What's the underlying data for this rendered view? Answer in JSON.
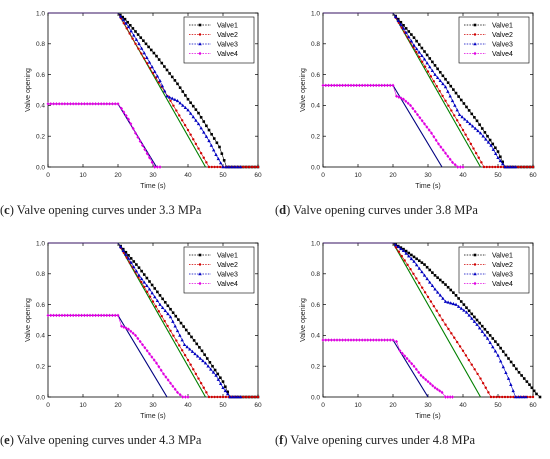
{
  "chart_data": [
    {
      "type": "line",
      "panel_label": "c",
      "caption": "Valve opening curves under 3.3 MPa",
      "xlabel": "Time (s)",
      "ylabel": "Valve opening",
      "xlim": [
        0,
        60
      ],
      "ylim": [
        0,
        1.0
      ],
      "xticks": [
        "0",
        "10",
        "20",
        "30",
        "40",
        "50",
        "60"
      ],
      "yticks": [
        "0.0",
        "0.2",
        "0.4",
        "0.6",
        "0.8",
        "1.0"
      ],
      "legend": "top-right",
      "series": [
        {
          "name": "",
          "color": "#000080",
          "marker": "none",
          "x": [
            0,
            20,
            31
          ],
          "y": [
            0.41,
            0.41,
            0
          ]
        },
        {
          "name": "",
          "color": "#008000",
          "marker": "none",
          "x": [
            0,
            20,
            45
          ],
          "y": [
            1,
            1,
            0
          ]
        },
        {
          "name": "Valve1",
          "color": "#000000",
          "marker": "square",
          "x": [
            0,
            20,
            22,
            25,
            28,
            31,
            34,
            37,
            40,
            43,
            46,
            49,
            51,
            55,
            60
          ],
          "y": [
            1,
            1,
            0.96,
            0.88,
            0.8,
            0.72,
            0.63,
            0.54,
            0.44,
            0.35,
            0.24,
            0.13,
            0,
            0,
            0
          ]
        },
        {
          "name": "Valve2",
          "color": "#d00000",
          "marker": "dot",
          "x": [
            0,
            20,
            25,
            30,
            35,
            40,
            46,
            50,
            55,
            60
          ],
          "y": [
            1,
            1,
            0.8,
            0.61,
            0.43,
            0.24,
            0,
            0,
            0,
            0
          ]
        },
        {
          "name": "Valve3",
          "color": "#0000c0",
          "marker": "triangle",
          "x": [
            0,
            20,
            23,
            26,
            29,
            32,
            34,
            37,
            40,
            43,
            46,
            48,
            50,
            55
          ],
          "y": [
            1,
            1,
            0.91,
            0.8,
            0.68,
            0.56,
            0.46,
            0.43,
            0.37,
            0.28,
            0.17,
            0.08,
            0,
            0
          ]
        },
        {
          "name": "Valve4",
          "color": "#e000e0",
          "marker": "diamond",
          "x": [
            0,
            20,
            21,
            23,
            25,
            27,
            29,
            30.5,
            32
          ],
          "y": [
            0.41,
            0.41,
            0.38,
            0.31,
            0.22,
            0.14,
            0.06,
            0,
            0
          ]
        }
      ]
    },
    {
      "type": "line",
      "panel_label": "d",
      "caption": "Valve opening curves under 3.8 MPa",
      "xlabel": "Time (s)",
      "ylabel": "Valve opening",
      "xlim": [
        0,
        60
      ],
      "ylim": [
        0,
        1.0
      ],
      "xticks": [
        "0",
        "10",
        "20",
        "30",
        "40",
        "50",
        "60"
      ],
      "yticks": [
        "0.0",
        "0.2",
        "0.4",
        "0.6",
        "0.8",
        "1.0"
      ],
      "legend": "top-right",
      "series": [
        {
          "name": "",
          "color": "#000080",
          "marker": "none",
          "x": [
            0,
            20,
            34
          ],
          "y": [
            0.53,
            0.53,
            0
          ]
        },
        {
          "name": "",
          "color": "#008000",
          "marker": "none",
          "x": [
            0,
            20,
            45
          ],
          "y": [
            1,
            1,
            0
          ]
        },
        {
          "name": "Valve1",
          "color": "#000000",
          "marker": "square",
          "x": [
            0,
            20,
            23,
            26,
            29,
            32,
            35,
            38,
            41,
            44,
            47,
            50,
            52,
            55,
            60
          ],
          "y": [
            1,
            1,
            0.92,
            0.84,
            0.75,
            0.66,
            0.57,
            0.48,
            0.39,
            0.3,
            0.2,
            0.1,
            0,
            0,
            0
          ]
        },
        {
          "name": "Valve2",
          "color": "#d00000",
          "marker": "dot",
          "x": [
            0,
            20,
            25,
            30,
            35,
            40,
            46,
            50,
            55,
            60
          ],
          "y": [
            1,
            1,
            0.81,
            0.62,
            0.43,
            0.24,
            0,
            0,
            0,
            0
          ]
        },
        {
          "name": "Valve3",
          "color": "#0000c0",
          "marker": "triangle",
          "x": [
            0,
            20,
            23,
            26,
            29,
            32,
            35,
            37,
            39,
            42,
            45,
            48,
            50,
            52,
            55
          ],
          "y": [
            1,
            1,
            0.9,
            0.79,
            0.7,
            0.6,
            0.52,
            0.43,
            0.34,
            0.28,
            0.22,
            0.14,
            0.06,
            0,
            0
          ]
        },
        {
          "name": "Valve4",
          "color": "#e000e0",
          "marker": "diamond",
          "x": [
            0,
            20,
            21,
            23,
            25,
            27,
            29,
            31,
            33,
            35,
            37,
            38.5,
            40
          ],
          "y": [
            0.53,
            0.53,
            0.46,
            0.44,
            0.4,
            0.34,
            0.28,
            0.22,
            0.15,
            0.09,
            0.03,
            0,
            0
          ]
        }
      ]
    },
    {
      "type": "line",
      "panel_label": "e",
      "caption": "Valve opening curves under 4.3 MPa",
      "xlabel": "Time (s)",
      "ylabel": "Valve opening",
      "xlim": [
        0,
        60
      ],
      "ylim": [
        0,
        1.0
      ],
      "xticks": [
        "0",
        "10",
        "20",
        "30",
        "40",
        "50",
        "60"
      ],
      "yticks": [
        "0.0",
        "0.2",
        "0.4",
        "0.6",
        "0.8",
        "1.0"
      ],
      "legend": "top-right",
      "series": [
        {
          "name": "",
          "color": "#000080",
          "marker": "none",
          "x": [
            0,
            20,
            34
          ],
          "y": [
            0.53,
            0.53,
            0
          ]
        },
        {
          "name": "",
          "color": "#008000",
          "marker": "none",
          "x": [
            0,
            20,
            45
          ],
          "y": [
            1,
            1,
            0
          ]
        },
        {
          "name": "Valve1",
          "color": "#000000",
          "marker": "square",
          "x": [
            0,
            20,
            23,
            26,
            29,
            32,
            35,
            38,
            41,
            44,
            47,
            50,
            52,
            55,
            60
          ],
          "y": [
            1,
            1,
            0.92,
            0.84,
            0.75,
            0.66,
            0.57,
            0.48,
            0.39,
            0.3,
            0.2,
            0.1,
            0,
            0,
            0
          ]
        },
        {
          "name": "Valve2",
          "color": "#d00000",
          "marker": "dot",
          "x": [
            0,
            20,
            25,
            30,
            35,
            40,
            46,
            50,
            55,
            60
          ],
          "y": [
            1,
            1,
            0.81,
            0.62,
            0.43,
            0.24,
            0,
            0,
            0,
            0
          ]
        },
        {
          "name": "Valve3",
          "color": "#0000c0",
          "marker": "triangle",
          "x": [
            0,
            20,
            23,
            26,
            29,
            32,
            35,
            37,
            39,
            42,
            45,
            48,
            50,
            52,
            55
          ],
          "y": [
            1,
            1,
            0.9,
            0.79,
            0.7,
            0.6,
            0.52,
            0.43,
            0.34,
            0.28,
            0.22,
            0.14,
            0.06,
            0,
            0
          ]
        },
        {
          "name": "Valve4",
          "color": "#e000e0",
          "marker": "diamond",
          "x": [
            0,
            20,
            21,
            23,
            25,
            27,
            29,
            31,
            33,
            35,
            37,
            38.5,
            40
          ],
          "y": [
            0.53,
            0.53,
            0.46,
            0.44,
            0.4,
            0.34,
            0.28,
            0.22,
            0.15,
            0.09,
            0.03,
            0,
            0
          ]
        }
      ]
    },
    {
      "type": "line",
      "panel_label": "f",
      "caption": "Valve opening curves under 4.8 MPa",
      "xlabel": "Time (s)",
      "ylabel": "Valve opening",
      "xlim": [
        0,
        60
      ],
      "ylim": [
        0,
        1.0
      ],
      "xticks": [
        "0",
        "10",
        "20",
        "30",
        "40",
        "50",
        "60"
      ],
      "yticks": [
        "0.0",
        "0.2",
        "0.4",
        "0.6",
        "0.8",
        "1.0"
      ],
      "legend": "top-right",
      "series": [
        {
          "name": "",
          "color": "#000080",
          "marker": "none",
          "x": [
            0,
            20,
            30
          ],
          "y": [
            0.37,
            0.37,
            0
          ]
        },
        {
          "name": "",
          "color": "#008000",
          "marker": "none",
          "x": [
            0,
            20,
            45
          ],
          "y": [
            1,
            1,
            0
          ]
        },
        {
          "name": "Valve1",
          "color": "#000000",
          "marker": "square",
          "x": [
            0,
            20,
            23,
            26,
            29,
            32,
            35,
            38,
            41,
            44,
            47,
            50,
            53,
            56,
            59,
            61,
            62
          ],
          "y": [
            1,
            1,
            0.96,
            0.91,
            0.86,
            0.79,
            0.73,
            0.66,
            0.58,
            0.5,
            0.42,
            0.34,
            0.25,
            0.16,
            0.08,
            0.02,
            0
          ]
        },
        {
          "name": "Valve2",
          "color": "#d00000",
          "marker": "dot",
          "x": [
            0,
            20,
            25,
            30,
            35,
            40,
            45,
            48,
            52,
            56,
            60
          ],
          "y": [
            1,
            1,
            0.83,
            0.65,
            0.47,
            0.3,
            0.12,
            0,
            0,
            0,
            0
          ]
        },
        {
          "name": "Valve3",
          "color": "#0000c0",
          "marker": "triangle",
          "x": [
            0,
            20,
            23,
            26,
            29,
            32,
            35,
            38,
            41,
            44,
            47,
            50,
            53,
            55,
            58
          ],
          "y": [
            1,
            1,
            0.95,
            0.88,
            0.79,
            0.7,
            0.62,
            0.6,
            0.55,
            0.47,
            0.38,
            0.27,
            0.12,
            0,
            0
          ]
        },
        {
          "name": "Valve4",
          "color": "#e000e0",
          "marker": "diamond",
          "x": [
            0,
            20,
            21,
            22,
            24,
            26,
            28,
            30,
            32,
            34,
            35,
            37
          ],
          "y": [
            0.37,
            0.37,
            0.36,
            0.3,
            0.25,
            0.2,
            0.14,
            0.1,
            0.06,
            0.03,
            0,
            0
          ]
        }
      ]
    }
  ]
}
